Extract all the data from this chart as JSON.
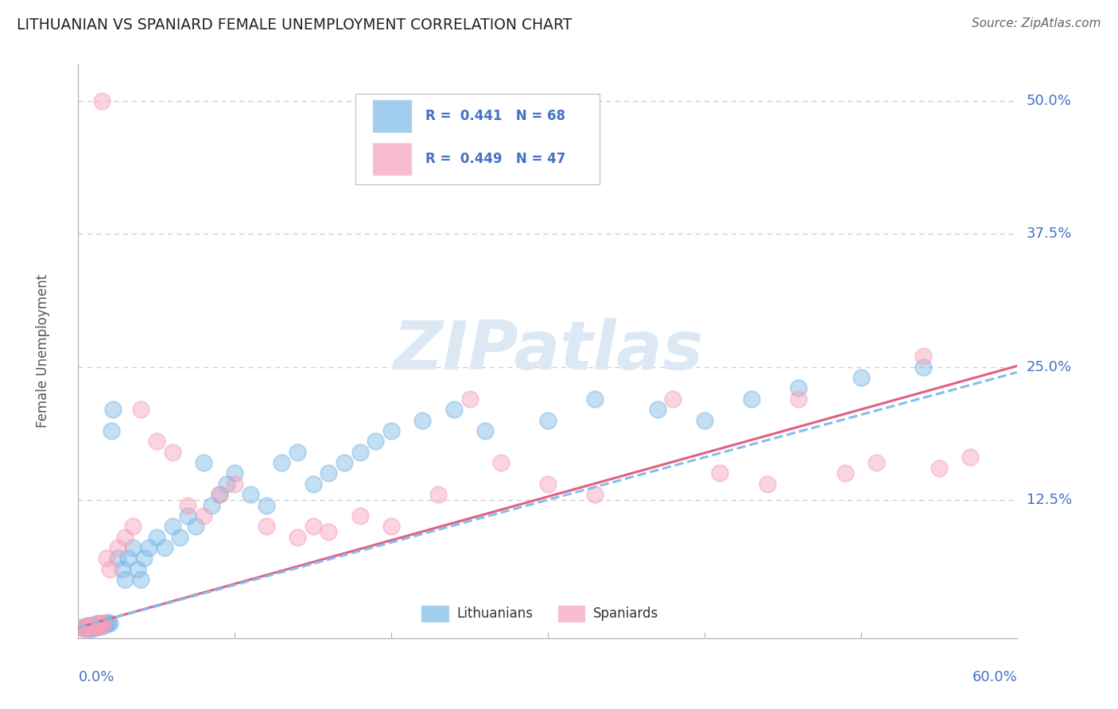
{
  "title": "LITHUANIAN VS SPANIARD FEMALE UNEMPLOYMENT CORRELATION CHART",
  "source": "Source: ZipAtlas.com",
  "ylabel": "Female Unemployment",
  "x_min": 0.0,
  "x_max": 0.6,
  "y_min": -0.005,
  "y_max": 0.535,
  "legend_entry1": {
    "R": "0.441",
    "N": "68",
    "label": "Lithuanians"
  },
  "legend_entry2": {
    "R": "0.449",
    "N": "47",
    "label": "Spaniards"
  },
  "blue_color": "#7ab8e8",
  "pink_color": "#f5a0b8",
  "blue_line_color": "#88bbee",
  "pink_line_color": "#e06080",
  "title_color": "#222222",
  "axis_label_color": "#4472c4",
  "watermark_color": "#dde8f5",
  "background_color": "#ffffff",
  "grid_color": "#cccccc",
  "lith_x": [
    0.003,
    0.004,
    0.005,
    0.006,
    0.006,
    0.007,
    0.007,
    0.008,
    0.008,
    0.009,
    0.009,
    0.01,
    0.01,
    0.011,
    0.011,
    0.012,
    0.013,
    0.013,
    0.014,
    0.015,
    0.016,
    0.017,
    0.018,
    0.019,
    0.02,
    0.021,
    0.022,
    0.025,
    0.028,
    0.03,
    0.032,
    0.035,
    0.038,
    0.04,
    0.042,
    0.045,
    0.05,
    0.055,
    0.06,
    0.065,
    0.07,
    0.075,
    0.08,
    0.085,
    0.09,
    0.095,
    0.1,
    0.11,
    0.12,
    0.13,
    0.14,
    0.15,
    0.16,
    0.17,
    0.18,
    0.19,
    0.2,
    0.22,
    0.24,
    0.26,
    0.3,
    0.33,
    0.37,
    0.4,
    0.43,
    0.46,
    0.5,
    0.54
  ],
  "lith_y": [
    0.005,
    0.004,
    0.006,
    0.005,
    0.007,
    0.004,
    0.006,
    0.005,
    0.007,
    0.004,
    0.006,
    0.005,
    0.007,
    0.006,
    0.008,
    0.005,
    0.007,
    0.009,
    0.006,
    0.008,
    0.007,
    0.009,
    0.008,
    0.01,
    0.009,
    0.19,
    0.21,
    0.07,
    0.06,
    0.05,
    0.07,
    0.08,
    0.06,
    0.05,
    0.07,
    0.08,
    0.09,
    0.08,
    0.1,
    0.09,
    0.11,
    0.1,
    0.16,
    0.12,
    0.13,
    0.14,
    0.15,
    0.13,
    0.12,
    0.16,
    0.17,
    0.14,
    0.15,
    0.16,
    0.17,
    0.18,
    0.19,
    0.2,
    0.21,
    0.19,
    0.2,
    0.22,
    0.21,
    0.2,
    0.22,
    0.23,
    0.24,
    0.25
  ],
  "span_x": [
    0.003,
    0.004,
    0.005,
    0.006,
    0.007,
    0.008,
    0.009,
    0.01,
    0.011,
    0.012,
    0.013,
    0.014,
    0.015,
    0.016,
    0.018,
    0.02,
    0.025,
    0.03,
    0.035,
    0.04,
    0.05,
    0.06,
    0.07,
    0.08,
    0.09,
    0.1,
    0.12,
    0.14,
    0.15,
    0.16,
    0.18,
    0.2,
    0.23,
    0.25,
    0.27,
    0.3,
    0.33,
    0.38,
    0.41,
    0.44,
    0.46,
    0.49,
    0.51,
    0.54,
    0.55,
    0.57,
    0.015
  ],
  "span_y": [
    0.005,
    0.004,
    0.006,
    0.005,
    0.007,
    0.005,
    0.006,
    0.005,
    0.007,
    0.006,
    0.008,
    0.007,
    0.009,
    0.008,
    0.07,
    0.06,
    0.08,
    0.09,
    0.1,
    0.21,
    0.18,
    0.17,
    0.12,
    0.11,
    0.13,
    0.14,
    0.1,
    0.09,
    0.1,
    0.095,
    0.11,
    0.1,
    0.13,
    0.22,
    0.16,
    0.14,
    0.13,
    0.22,
    0.15,
    0.14,
    0.22,
    0.15,
    0.16,
    0.26,
    0.155,
    0.165,
    0.5
  ]
}
